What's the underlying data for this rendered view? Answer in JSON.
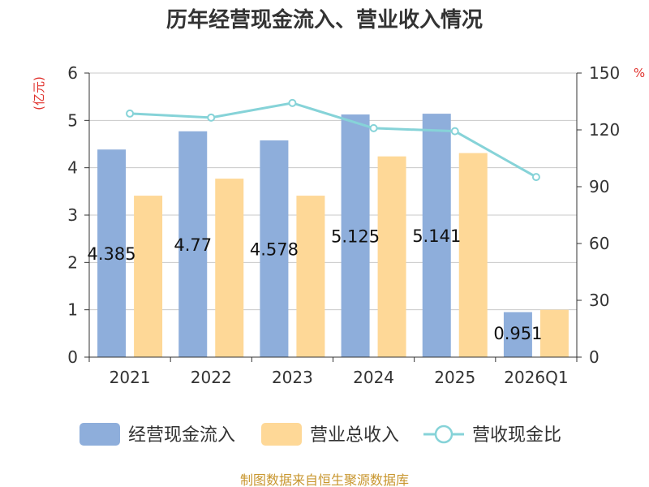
{
  "chart_data": {
    "type": "bar",
    "title": "历年经营现金流入、营业收入情况",
    "categories": [
      "2021",
      "2022",
      "2023",
      "2024",
      "2025",
      "2026Q1"
    ],
    "y_left": {
      "unit": "(亿元)",
      "ticks": [
        0,
        1,
        2,
        3,
        4,
        5,
        6
      ],
      "ylim": [
        0,
        6
      ]
    },
    "y_right": {
      "unit": "%",
      "ticks": [
        0,
        30,
        60,
        90,
        120,
        150
      ],
      "ylim": [
        0,
        150
      ]
    },
    "series": [
      {
        "name": "经营现金流入",
        "kind": "bar",
        "axis": "left",
        "color": "#8eaedb",
        "values": [
          4.385,
          4.77,
          4.578,
          5.125,
          5.141,
          0.951
        ],
        "labels": [
          "4.385",
          "4.77",
          "4.578",
          "5.125",
          "5.141",
          "0.951"
        ]
      },
      {
        "name": "营业总收入",
        "kind": "bar",
        "axis": "left",
        "color": "#fed897",
        "values": [
          3.41,
          3.77,
          3.41,
          4.24,
          4.31,
          1.0
        ]
      },
      {
        "name": "营收现金比",
        "kind": "line",
        "axis": "right",
        "color": "#86d3d8",
        "values": [
          128.6,
          126.5,
          134.2,
          120.9,
          119.3,
          95.1
        ]
      }
    ],
    "grid": true,
    "legend_position": "bottom"
  },
  "source": "制图数据来自恒生聚源数据库"
}
